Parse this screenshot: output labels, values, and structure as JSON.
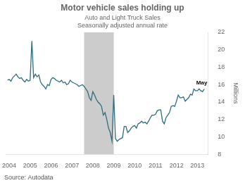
{
  "chart_data": {
    "type": "line",
    "title": "Motor vehicle sales holding up",
    "subtitle": [
      "Auto and Light Truck Sales",
      "Seasonally adjusted annual rate"
    ],
    "ylabel": "Millions",
    "source": "Source: Autodata",
    "annotations": [
      {
        "text": "May",
        "x": 2012.95,
        "y": 16.2
      }
    ],
    "shade": {
      "x": [
        2007.583,
        2009.0
      ],
      "color": "#CCCCCC"
    },
    "color": "#2E6E7E",
    "grid": false,
    "xlim": [
      2003.83,
      2013.5
    ],
    "xticks": [
      2004,
      2005,
      2006,
      2007,
      2008,
      2009,
      2010,
      2011,
      2012,
      2013
    ],
    "ylim": [
      8,
      22
    ],
    "yticks": [
      8,
      10,
      12,
      14,
      16,
      18,
      20,
      22
    ],
    "x": [
      2003.917,
      2004.0,
      2004.083,
      2004.167,
      2004.25,
      2004.333,
      2004.417,
      2004.5,
      2004.583,
      2004.667,
      2004.75,
      2004.833,
      2004.917,
      2005.0,
      2005.083,
      2005.167,
      2005.25,
      2005.333,
      2005.417,
      2005.5,
      2005.583,
      2005.667,
      2005.75,
      2005.833,
      2005.917,
      2006.0,
      2006.083,
      2006.167,
      2006.25,
      2006.333,
      2006.417,
      2006.5,
      2006.583,
      2006.667,
      2006.75,
      2006.833,
      2006.917,
      2007.0,
      2007.083,
      2007.167,
      2007.25,
      2007.333,
      2007.417,
      2007.5,
      2007.583,
      2007.667,
      2007.75,
      2007.833,
      2007.917,
      2008.0,
      2008.083,
      2008.167,
      2008.25,
      2008.333,
      2008.417,
      2008.5,
      2008.583,
      2008.667,
      2008.75,
      2008.833,
      2008.917,
      2009.0,
      2009.083,
      2009.167,
      2009.25,
      2009.333,
      2009.417,
      2009.5,
      2009.583,
      2009.667,
      2009.75,
      2009.833,
      2009.917,
      2010.0,
      2010.083,
      2010.167,
      2010.25,
      2010.333,
      2010.417,
      2010.5,
      2010.583,
      2010.667,
      2010.75,
      2010.833,
      2010.917,
      2011.0,
      2011.083,
      2011.167,
      2011.25,
      2011.333,
      2011.417,
      2011.5,
      2011.583,
      2011.667,
      2011.75,
      2011.833,
      2011.917,
      2012.0,
      2012.083,
      2012.167,
      2012.25,
      2012.333,
      2012.417,
      2012.5,
      2012.583,
      2012.667,
      2012.75,
      2012.833,
      2012.917,
      2013.0,
      2013.083,
      2013.167,
      2013.25,
      2013.333
    ],
    "values": [
      16.5,
      16.6,
      16.4,
      16.8,
      17.0,
      17.2,
      16.9,
      16.7,
      16.8,
      16.5,
      16.3,
      16.6,
      16.4,
      16.5,
      21.0,
      16.8,
      17.2,
      16.9,
      17.1,
      16.3,
      16.0,
      15.8,
      15.5,
      16.0,
      15.9,
      16.6,
      16.8,
      16.7,
      16.5,
      16.4,
      16.3,
      16.5,
      16.2,
      16.3,
      16.0,
      16.1,
      16.5,
      16.3,
      16.2,
      16.1,
      16.0,
      15.8,
      15.9,
      16.0,
      15.8,
      15.5,
      15.2,
      14.5,
      14.2,
      15.2,
      14.8,
      14.3,
      14.0,
      13.8,
      13.5,
      12.5,
      12.8,
      12.0,
      11.0,
      10.5,
      9.5,
      14.8,
      9.8,
      9.5,
      9.7,
      9.8,
      9.9,
      11.2,
      11.2,
      10.5,
      10.7,
      11.0,
      11.2,
      11.3,
      11.0,
      11.5,
      11.6,
      11.8,
      11.6,
      11.7,
      11.5,
      11.8,
      12.2,
      12.5,
      12.5,
      12.6,
      13.0,
      13.1,
      13.1,
      11.8,
      11.5,
      12.2,
      12.5,
      12.8,
      13.5,
      13.6,
      13.5,
      14.1,
      14.8,
      14.5,
      14.5,
      14.6,
      14.1,
      14.3,
      14.5,
      14.9,
      14.8,
      15.5,
      15.3,
      15.3,
      15.5,
      15.3,
      15.2,
      15.5
    ]
  }
}
